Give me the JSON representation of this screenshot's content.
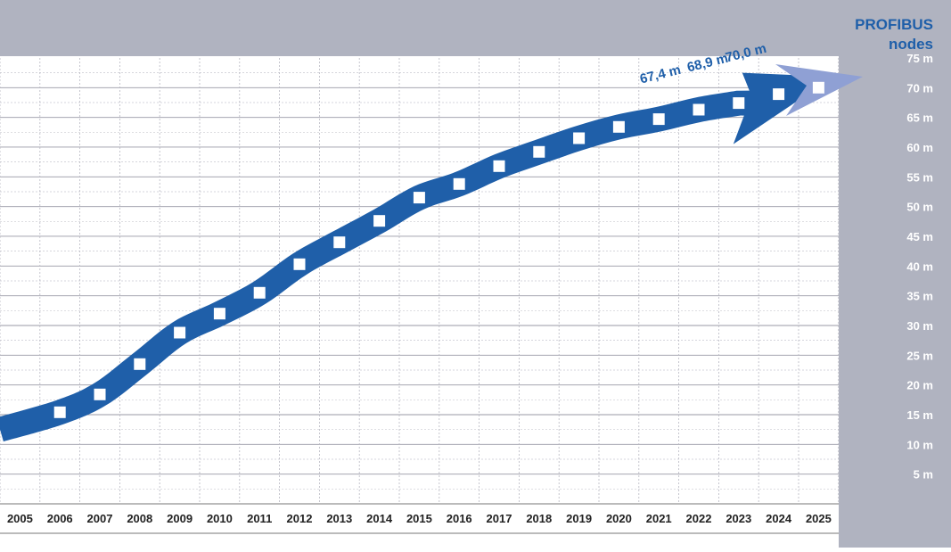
{
  "header": {
    "title_line1": "PROFIBUS",
    "title_line2": "nodes"
  },
  "chart_data": {
    "type": "line",
    "title": "PROFIBUS nodes",
    "xlabel": "",
    "ylabel": "",
    "y_unit": "m",
    "ylim": [
      0,
      75
    ],
    "y_ticks": [
      5,
      10,
      15,
      20,
      25,
      30,
      35,
      40,
      45,
      50,
      55,
      60,
      65,
      70,
      75
    ],
    "y_tick_labels": [
      "5 m",
      "10 m",
      "15 m",
      "20 m",
      "25 m",
      "30 m",
      "35 m",
      "40 m",
      "45 m",
      "50 m",
      "55 m",
      "60 m",
      "65 m",
      "70 m",
      "75 m"
    ],
    "x": [
      "2005",
      "2006",
      "2007",
      "2008",
      "2009",
      "2010",
      "2011",
      "2012",
      "2013",
      "2014",
      "2015",
      "2016",
      "2017",
      "2018",
      "2019",
      "2020",
      "2021",
      "2022",
      "2023",
      "2024",
      "2025"
    ],
    "series": [
      {
        "values": [
          null,
          15.4,
          18.4,
          23.5,
          28.8,
          32.0,
          35.5,
          40.3,
          44.0,
          47.6,
          51.5,
          53.8,
          56.8,
          59.2,
          61.5,
          63.4,
          64.7,
          66.3,
          67.4,
          68.9,
          70.0
        ]
      }
    ],
    "annotations": [
      {
        "text": "67,4 m",
        "x": "2023",
        "y": 67.4
      },
      {
        "text": "68,9 m",
        "x": "2024",
        "y": 68.9
      },
      {
        "text": "70,0 m",
        "x": "2025",
        "y": 70.0
      }
    ],
    "grid": true,
    "colors": {
      "arrow": "#1f5fa9",
      "arrow_tip": "#8fa0d4",
      "header_band": "#b0b3c0",
      "title_text": "#1f5fa9",
      "marker": "#ffffff"
    }
  }
}
